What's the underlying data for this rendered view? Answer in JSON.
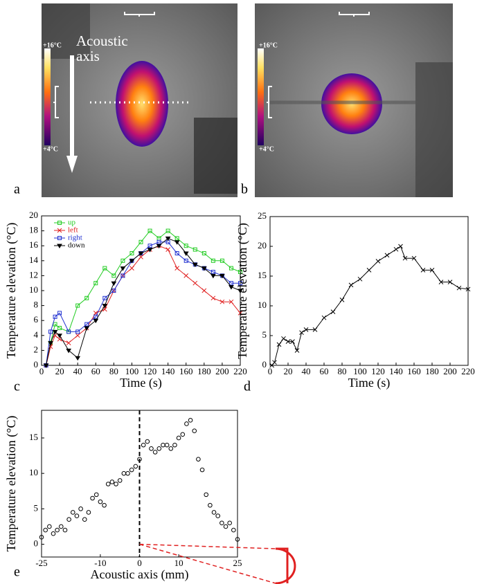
{
  "images": [
    {
      "label": "a",
      "scale_top": "+16°C",
      "scale_bottom": "+4°C",
      "annotation": "Acoustic axis"
    },
    {
      "label": "b",
      "scale_top": "+16°C",
      "scale_bottom": "+4°C"
    }
  ],
  "chart_data": [
    {
      "type": "line",
      "label": "c",
      "xlabel": "Time (s)",
      "ylabel": "Temperature elevation (°C)",
      "xlim": [
        0,
        220
      ],
      "ylim": [
        0,
        20
      ],
      "xticks": [
        0,
        20,
        40,
        60,
        80,
        100,
        120,
        140,
        160,
        180,
        200,
        220
      ],
      "yticks": [
        0,
        2,
        4,
        6,
        8,
        10,
        12,
        14,
        16,
        18,
        20
      ],
      "legend": "upper left",
      "x": [
        5,
        10,
        15,
        20,
        30,
        40,
        50,
        60,
        70,
        80,
        90,
        100,
        110,
        120,
        130,
        140,
        150,
        160,
        170,
        180,
        190,
        200,
        210,
        220
      ],
      "series": [
        {
          "name": "up",
          "color": "#22cc22",
          "marker": "square",
          "values": [
            0,
            3,
            5.5,
            5,
            4.5,
            8,
            9,
            11,
            13,
            12,
            14,
            15,
            16.5,
            18,
            17,
            18,
            17,
            16,
            15.5,
            15,
            14,
            14,
            13,
            12.5
          ]
        },
        {
          "name": "left",
          "color": "#e02020",
          "marker": "x",
          "values": [
            0,
            2.5,
            4,
            3.5,
            3,
            4,
            5,
            7,
            7.5,
            10,
            12,
            13,
            14.5,
            15.5,
            16,
            15.5,
            13,
            12,
            11,
            10,
            9,
            8.5,
            8.5,
            7
          ]
        },
        {
          "name": "right",
          "color": "#2030d0",
          "marker": "square",
          "values": [
            0,
            4.5,
            6.5,
            7,
            4.5,
            4.5,
            5.5,
            6.5,
            9,
            10,
            12,
            14,
            15,
            16,
            16.5,
            16.5,
            15,
            14,
            13.5,
            13,
            12.5,
            12,
            11,
            11
          ]
        },
        {
          "name": "down",
          "color": "#000000",
          "marker": "triangle",
          "values": [
            0,
            3,
            4.5,
            4,
            2,
            1,
            5,
            6,
            8,
            11,
            13,
            14,
            15,
            15.5,
            16,
            17,
            16.5,
            15,
            13.5,
            13,
            12,
            12,
            10.5,
            10
          ]
        }
      ]
    },
    {
      "type": "line",
      "label": "d",
      "xlabel": "Time (s)",
      "ylabel": "Temperature elevation (°C)",
      "xlim": [
        0,
        220
      ],
      "ylim": [
        0,
        25
      ],
      "xticks": [
        0,
        20,
        40,
        60,
        80,
        100,
        120,
        140,
        160,
        180,
        200,
        220
      ],
      "yticks": [
        0,
        5,
        10,
        15,
        20,
        25
      ],
      "x": [
        2,
        5,
        10,
        15,
        20,
        25,
        30,
        35,
        40,
        50,
        60,
        70,
        80,
        90,
        100,
        110,
        120,
        130,
        140,
        145,
        150,
        160,
        170,
        180,
        190,
        200,
        210,
        220
      ],
      "series": [
        {
          "color": "#000000",
          "marker": "x",
          "values": [
            0,
            0.5,
            3.5,
            4.5,
            4,
            4,
            2.5,
            5.5,
            6,
            6,
            8,
            9,
            11,
            13.5,
            14.5,
            16,
            17.5,
            18.5,
            19.5,
            20,
            18,
            18,
            16,
            16,
            14,
            14,
            13,
            12.8
          ]
        }
      ]
    },
    {
      "type": "scatter",
      "label": "e",
      "xlabel": "Acoustic axis (mm)",
      "ylabel": "Temperature elevation (°C)",
      "xlim": [
        -25,
        25
      ],
      "ylim": [
        -1.8,
        18.9
      ],
      "xticks": [
        -25,
        -10,
        0,
        10,
        25
      ],
      "yticks": [
        0,
        5,
        10,
        15
      ],
      "x": [
        -25,
        -24,
        -23,
        -22,
        -21,
        -20,
        -19,
        -18,
        -17,
        -16,
        -15,
        -14,
        -13,
        -12,
        -11,
        -10,
        -9,
        -8,
        -7,
        -6,
        -5,
        -4,
        -3,
        -2,
        -1,
        0,
        1,
        2,
        3,
        4,
        5,
        6,
        7,
        8,
        9,
        10,
        11,
        12,
        13,
        14,
        15,
        16,
        17,
        18,
        19,
        20,
        21,
        22,
        23,
        24,
        25
      ],
      "series": [
        {
          "color": "#000000",
          "marker": "circle",
          "values": [
            1,
            2,
            2.5,
            1.5,
            2,
            2.5,
            2,
            3.5,
            4.5,
            4,
            5,
            3.5,
            4.5,
            6.5,
            7,
            6,
            5.5,
            8.5,
            8.8,
            8.5,
            9,
            10,
            10,
            10.5,
            11,
            12,
            14,
            14.5,
            13.5,
            13,
            13.5,
            14,
            14,
            13.5,
            14,
            15,
            15.5,
            17,
            17.5,
            16,
            12,
            10.5,
            7,
            5.5,
            4.5,
            4,
            3,
            2.5,
            3,
            2,
            0.7
          ]
        }
      ]
    }
  ]
}
